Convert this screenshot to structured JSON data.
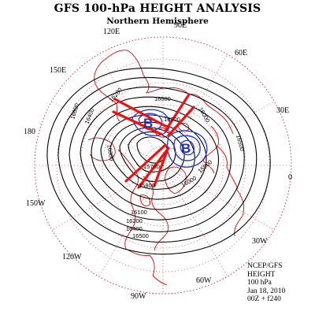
{
  "title": "GFS 100-hPa HEIGHT ANALYSIS",
  "subtitle": "Northern Hemisphere",
  "longitude_labels": {
    "e90": "90E",
    "e120": "120E",
    "e60": "60E",
    "e150": "150E",
    "e30": "30E",
    "w180": "180",
    "e0": "0",
    "w150": "150W",
    "w30": "30W",
    "w120": "120W",
    "w60": "60W",
    "w90": "90W"
  },
  "contour_labels": {
    "c16000a": "16000",
    "c16600": "16600",
    "c16400": "16400",
    "c16200": "16200",
    "c16300": "16300",
    "c16500": "16500",
    "c16000b": "16000",
    "c15900": "15900",
    "c15700": "15700",
    "c15800": "15800",
    "c16100": "16100",
    "c16200b": "16200",
    "c16400b": "16400",
    "c16500b": "16500",
    "c16000c": "16000",
    "c16300b": "16300"
  },
  "annotations": {
    "low_center_1": "B",
    "low_center_2": "B"
  },
  "info": {
    "source": "NCEP/GFS",
    "field": "HEIGHT",
    "level": "100 hPa",
    "date": "Jan 18, 2010",
    "run": "00Z + f240"
  },
  "colors": {
    "contour": "#000000",
    "coastline": "#e00000",
    "grid": "#d01010",
    "low_contour": "#2a3fd4",
    "arrows": "#ee1111"
  }
}
